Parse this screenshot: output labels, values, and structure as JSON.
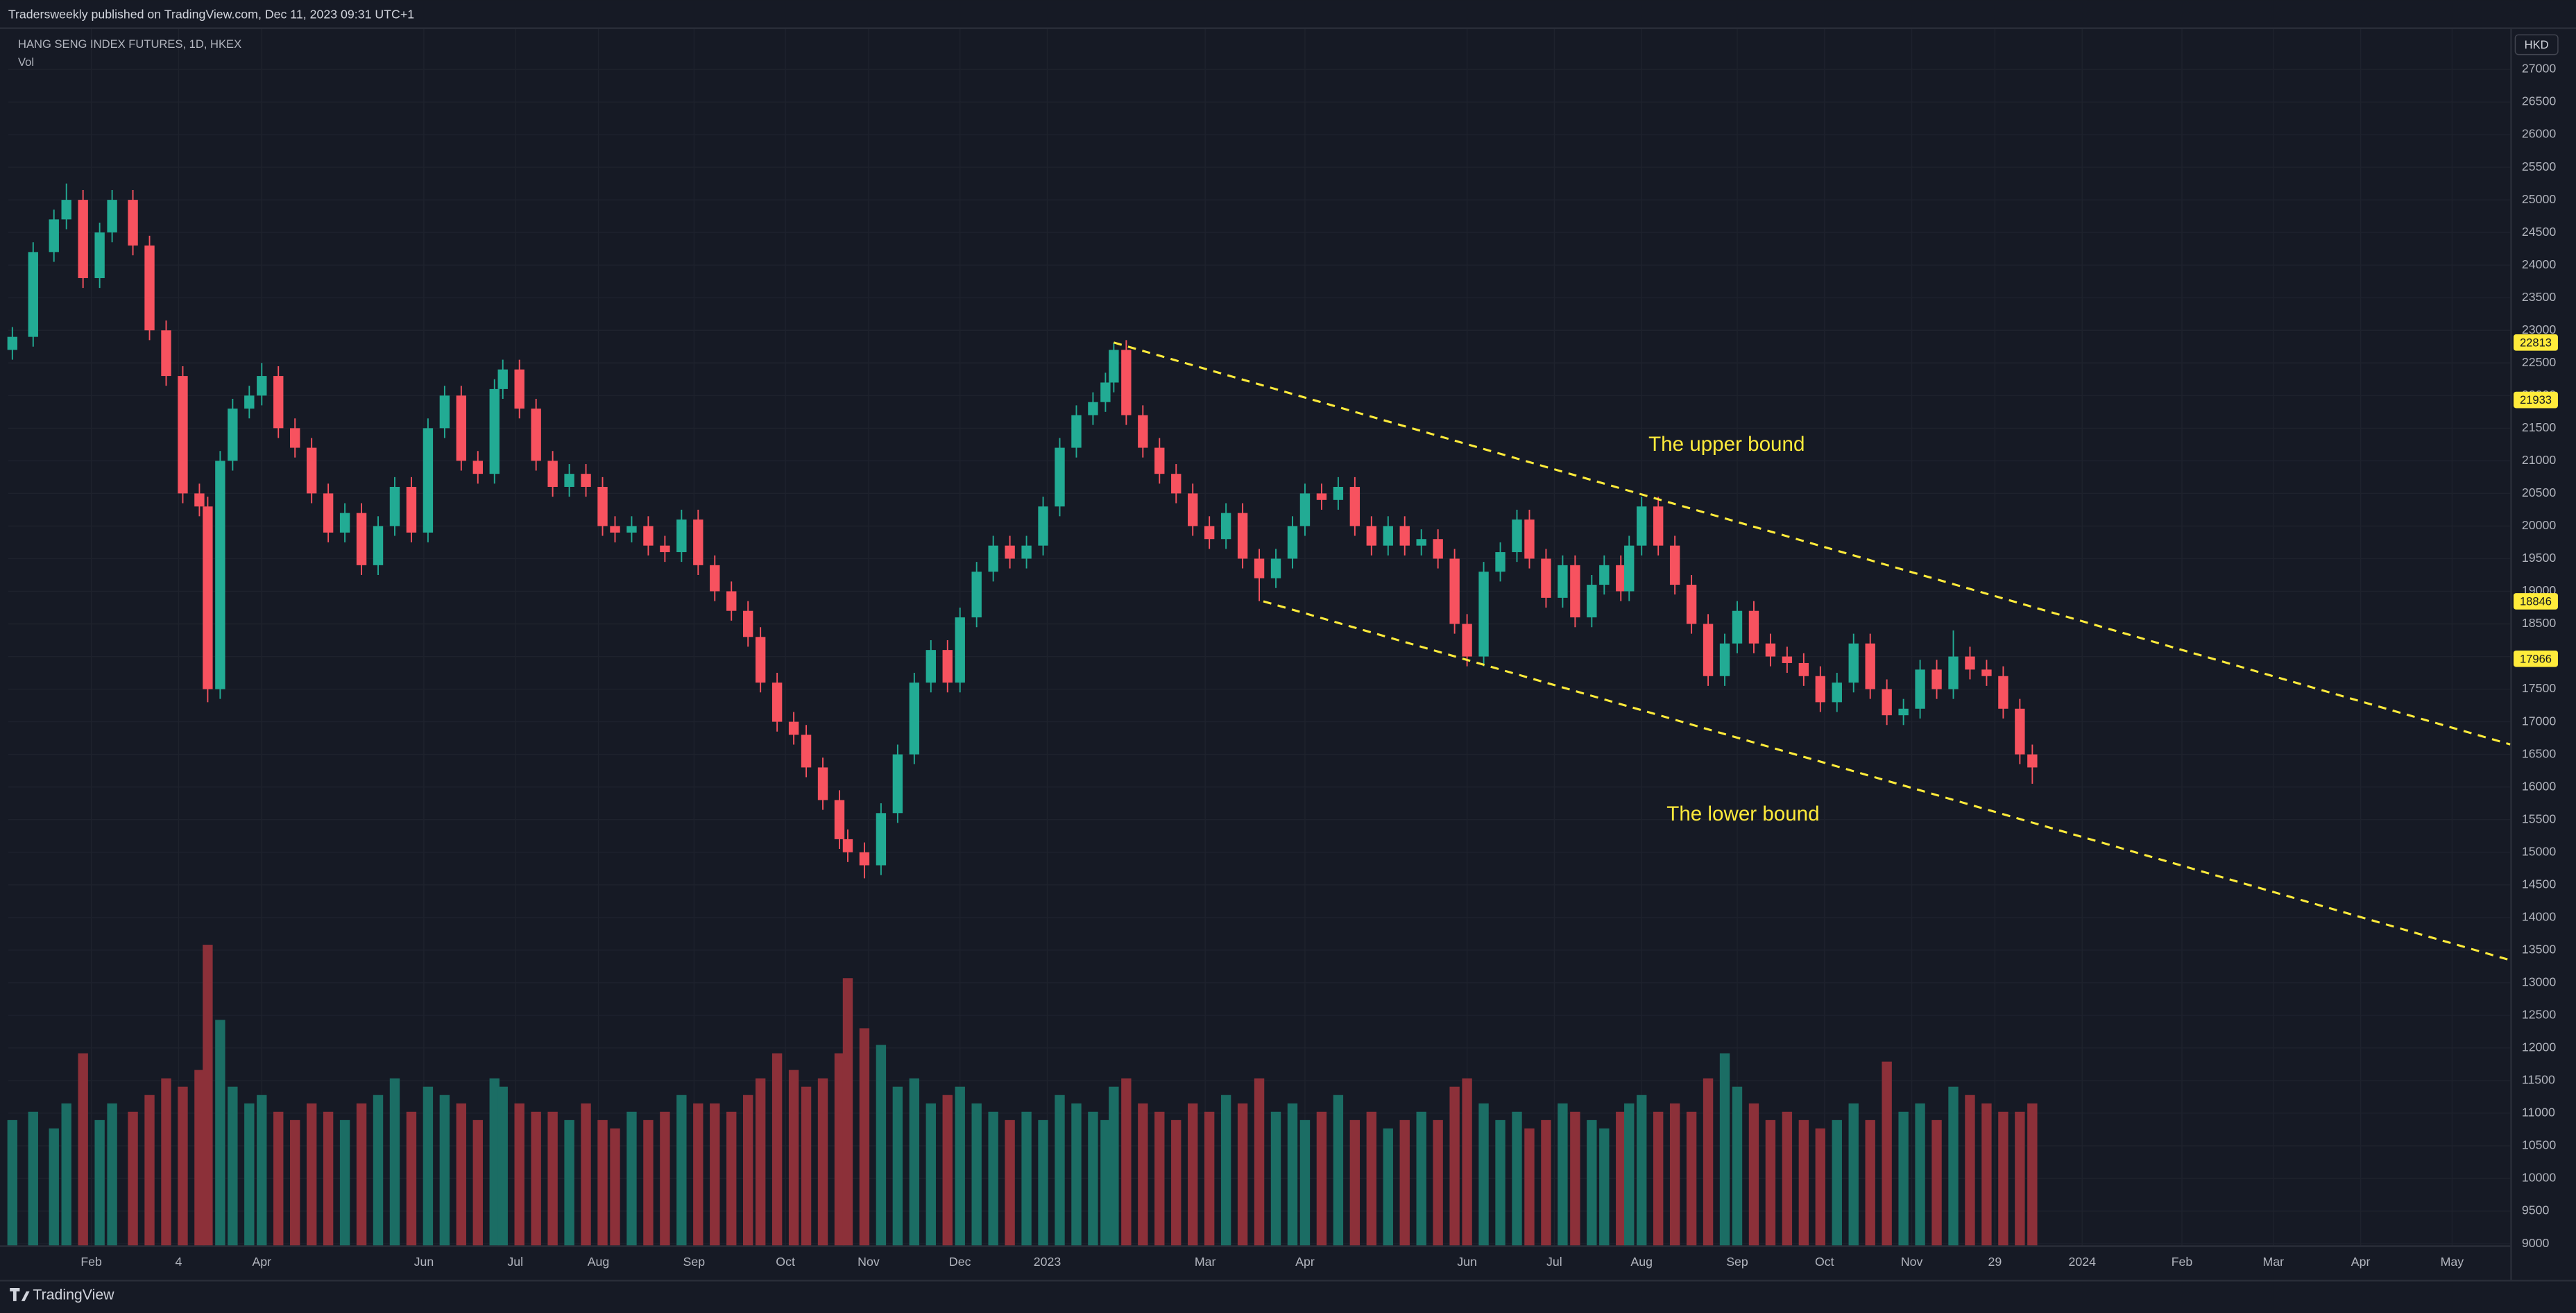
{
  "header": "Tradersweekly published on TradingView.com, Dec 11, 2023 09:31 UTC+1",
  "footer": "TradingView",
  "chart_data": {
    "type": "candlestick",
    "title": "HANG SENG INDEX FUTURES, 1D, HKEX",
    "volume_label": "Vol",
    "currency": "HKD",
    "up_color": "#22ab94",
    "down_color": "#f7525f",
    "volume_up_color": "#1b6d64",
    "volume_down_color": "#8c3039",
    "grid": true,
    "xlim": [
      -1,
      601
    ],
    "ylim": [
      8975,
      27630
    ],
    "yticks": [
      9000,
      9500,
      10000,
      10500,
      11000,
      11500,
      12000,
      12500,
      13000,
      13500,
      14000,
      14500,
      15000,
      15500,
      16000,
      16500,
      17000,
      17500,
      18000,
      18500,
      19000,
      19500,
      20000,
      20500,
      21000,
      21500,
      22000,
      22500,
      23000,
      23500,
      24000,
      24500,
      25000,
      25500,
      26000,
      26500,
      27000
    ],
    "xticks": [
      {
        "value": 19,
        "label": "Feb"
      },
      {
        "value": 40,
        "label": "4"
      },
      {
        "value": 60,
        "label": "Apr"
      },
      {
        "value": 99,
        "label": "Jun"
      },
      {
        "value": 121,
        "label": "Jul"
      },
      {
        "value": 141,
        "label": "Aug"
      },
      {
        "value": 164,
        "label": "Sep"
      },
      {
        "value": 186,
        "label": "Oct"
      },
      {
        "value": 206,
        "label": "Nov"
      },
      {
        "value": 228,
        "label": "Dec"
      },
      {
        "value": 249,
        "label": "2023"
      },
      {
        "value": 287,
        "label": "Mar"
      },
      {
        "value": 311,
        "label": "Apr"
      },
      {
        "value": 350,
        "label": "Jun"
      },
      {
        "value": 371,
        "label": "Jul"
      },
      {
        "value": 392,
        "label": "Aug"
      },
      {
        "value": 415,
        "label": "Sep"
      },
      {
        "value": 436,
        "label": "Oct"
      },
      {
        "value": 457,
        "label": "Nov"
      },
      {
        "value": 477,
        "label": "29"
      },
      {
        "value": 498,
        "label": "2024"
      },
      {
        "value": 522,
        "label": "Feb"
      },
      {
        "value": 544,
        "label": "Mar"
      },
      {
        "value": 565,
        "label": "Apr"
      },
      {
        "value": 587,
        "label": "May"
      }
    ],
    "x": [
      0,
      5,
      10,
      13,
      17,
      21,
      24,
      29,
      33,
      37,
      41,
      45,
      47,
      50,
      53,
      57,
      60,
      64,
      68,
      72,
      76,
      80,
      84,
      88,
      92,
      96,
      100,
      104,
      108,
      112,
      116,
      118,
      122,
      126,
      130,
      134,
      138,
      142,
      145,
      149,
      153,
      157,
      161,
      165,
      169,
      173,
      177,
      180,
      184,
      188,
      191,
      195,
      199,
      201,
      205,
      209,
      213,
      217,
      221,
      225,
      228,
      232,
      236,
      240,
      244,
      248,
      252,
      256,
      260,
      263,
      265,
      268,
      272,
      276,
      280,
      284,
      288,
      292,
      296,
      300,
      304,
      308,
      311,
      315,
      319,
      323,
      327,
      331,
      335,
      339,
      343,
      347,
      350,
      354,
      358,
      362,
      365,
      369,
      373,
      376,
      380,
      383,
      387,
      389,
      392,
      396,
      400,
      404,
      408,
      412,
      415,
      419,
      423,
      427,
      431,
      435,
      439,
      443,
      447,
      451,
      455,
      459,
      463,
      467,
      471,
      475,
      479,
      483,
      486
    ],
    "open": [
      22700,
      22900,
      24200,
      24700,
      25000,
      23800,
      24500,
      25000,
      24300,
      23000,
      22300,
      20500,
      20300,
      17500,
      21000,
      21800,
      22000,
      22300,
      21500,
      21200,
      20500,
      19900,
      20200,
      19400,
      20000,
      20600,
      19900,
      21500,
      22000,
      21000,
      20800,
      22100,
      22400,
      21800,
      21000,
      20600,
      20800,
      20600,
      20000,
      19900,
      20000,
      19700,
      19600,
      20100,
      19400,
      19000,
      18700,
      18300,
      17600,
      17000,
      16800,
      16300,
      15800,
      15200,
      15000,
      14800,
      15600,
      16500,
      17600,
      18100,
      17600,
      18600,
      19300,
      19700,
      19500,
      19700,
      20300,
      21200,
      21700,
      21900,
      22200,
      22700,
      21700,
      21200,
      20800,
      20500,
      20000,
      19800,
      20200,
      19500,
      19200,
      19500,
      20000,
      20500,
      20400,
      20600,
      20000,
      19700,
      20000,
      19700,
      19800,
      19500,
      18500,
      18000,
      19300,
      19600,
      20100,
      19500,
      18900,
      19400,
      18600,
      19100,
      19400,
      19000,
      19700,
      20300,
      19700,
      19100,
      18500,
      17700,
      18200,
      18700,
      18200,
      18000,
      17900,
      17700,
      17300,
      17600,
      18200,
      17500,
      17100,
      17200,
      17800,
      17500,
      18000,
      17800,
      17700,
      17200,
      16500
    ],
    "high": [
      23050,
      24350,
      24850,
      25250,
      25150,
      24650,
      25150,
      25150,
      24450,
      23150,
      22450,
      20650,
      20450,
      21150,
      21950,
      22150,
      22500,
      22450,
      21650,
      21350,
      20650,
      20350,
      20350,
      20150,
      20750,
      20750,
      21650,
      22150,
      22150,
      21150,
      22250,
      22550,
      22550,
      21950,
      21150,
      20950,
      20950,
      20750,
      20150,
      20150,
      20150,
      19850,
      20250,
      20250,
      19550,
      19150,
      18850,
      18450,
      17750,
      17150,
      16950,
      16450,
      15950,
      15350,
      15150,
      15750,
      16650,
      17750,
      18250,
      18250,
      18750,
      19450,
      19850,
      19850,
      19850,
      20450,
      21350,
      21850,
      22050,
      22350,
      22813,
      22850,
      21850,
      21350,
      20950,
      20650,
      20150,
      20350,
      20350,
      19650,
      19650,
      20150,
      20650,
      20650,
      20750,
      20750,
      20150,
      20150,
      20150,
      19950,
      19950,
      19650,
      18650,
      19450,
      19750,
      20250,
      20250,
      19650,
      19550,
      19550,
      19250,
      19550,
      19550,
      19850,
      20450,
      20450,
      19850,
      19250,
      18650,
      18350,
      18850,
      18850,
      18350,
      18150,
      18050,
      17850,
      17750,
      18350,
      18350,
      17650,
      17350,
      17950,
      17950,
      18400,
      18150,
      17950,
      17850,
      17350,
      16650
    ],
    "low": [
      22550,
      22750,
      24050,
      24550,
      23650,
      23650,
      24350,
      24150,
      22850,
      22150,
      20350,
      20150,
      17300,
      17350,
      20850,
      21650,
      21850,
      21350,
      21050,
      20350,
      19750,
      19750,
      19250,
      19250,
      19850,
      19750,
      19750,
      21350,
      20850,
      20650,
      20650,
      21950,
      21650,
      20850,
      20450,
      20450,
      20450,
      19850,
      19750,
      19750,
      19550,
      19450,
      19450,
      19250,
      18850,
      18550,
      18150,
      17450,
      16850,
      16650,
      16150,
      15650,
      15050,
      14850,
      14600,
      14650,
      15450,
      16350,
      17450,
      17450,
      17450,
      18450,
      19150,
      19350,
      19350,
      19550,
      20150,
      21050,
      21550,
      21750,
      22050,
      21550,
      21050,
      20650,
      20350,
      19850,
      19650,
      19650,
      19350,
      18850,
      19050,
      19350,
      19850,
      20250,
      20250,
      19850,
      19550,
      19550,
      19550,
      19550,
      19350,
      18350,
      17850,
      17850,
      19150,
      19450,
      19350,
      18750,
      18750,
      18450,
      18450,
      18950,
      18850,
      18850,
      19550,
      19550,
      18950,
      18350,
      17550,
      17550,
      18050,
      18050,
      17850,
      17750,
      17550,
      17150,
      17150,
      17450,
      17350,
      16950,
      16950,
      17050,
      17350,
      17350,
      17650,
      17550,
      17050,
      16350,
      16050
    ],
    "close": [
      22900,
      24200,
      24700,
      25000,
      23800,
      24500,
      25000,
      24300,
      23000,
      22300,
      20500,
      20300,
      17500,
      21000,
      21800,
      22000,
      22300,
      21500,
      21200,
      20500,
      19900,
      20200,
      19400,
      20000,
      20600,
      19900,
      21500,
      22000,
      21000,
      20800,
      22100,
      22400,
      21800,
      21000,
      20600,
      20800,
      20600,
      20000,
      19900,
      20000,
      19700,
      19600,
      20100,
      19400,
      19000,
      18700,
      18300,
      17600,
      17000,
      16800,
      16300,
      15800,
      15200,
      15000,
      14800,
      15600,
      16500,
      17600,
      18100,
      17600,
      18600,
      19300,
      19700,
      19500,
      19700,
      20300,
      21200,
      21700,
      21900,
      22200,
      22700,
      21700,
      21200,
      20800,
      20500,
      20000,
      19800,
      20200,
      19500,
      19200,
      19500,
      20000,
      20500,
      20400,
      20600,
      20000,
      19700,
      20000,
      19700,
      19800,
      19500,
      18500,
      18000,
      19300,
      19600,
      20100,
      19500,
      18900,
      19400,
      18600,
      19100,
      19400,
      19000,
      19700,
      20300,
      19700,
      19100,
      18500,
      17700,
      18200,
      18700,
      18200,
      18000,
      17900,
      17700,
      17300,
      17600,
      18200,
      17500,
      17100,
      17200,
      17800,
      17500,
      18000,
      17800,
      17700,
      17200,
      16500,
      16300
    ],
    "volume": [
      150000,
      160000,
      140000,
      170000,
      230000,
      150000,
      170000,
      160000,
      180000,
      200000,
      190000,
      210000,
      360000,
      270000,
      190000,
      170000,
      180000,
      160000,
      150000,
      170000,
      160000,
      150000,
      170000,
      180000,
      200000,
      160000,
      190000,
      180000,
      170000,
      150000,
      200000,
      190000,
      170000,
      160000,
      160000,
      150000,
      170000,
      150000,
      140000,
      160000,
      150000,
      160000,
      180000,
      170000,
      170000,
      160000,
      180000,
      200000,
      230000,
      210000,
      190000,
      200000,
      230000,
      320000,
      260000,
      240000,
      190000,
      200000,
      170000,
      180000,
      190000,
      170000,
      160000,
      150000,
      160000,
      150000,
      180000,
      170000,
      160000,
      150000,
      190000,
      200000,
      170000,
      160000,
      150000,
      170000,
      160000,
      180000,
      170000,
      200000,
      160000,
      170000,
      150000,
      160000,
      180000,
      150000,
      160000,
      140000,
      150000,
      160000,
      150000,
      190000,
      200000,
      170000,
      150000,
      160000,
      140000,
      150000,
      170000,
      160000,
      150000,
      140000,
      160000,
      170000,
      180000,
      160000,
      170000,
      160000,
      200000,
      230000,
      190000,
      170000,
      150000,
      160000,
      150000,
      140000,
      150000,
      170000,
      150000,
      220000,
      160000,
      170000,
      150000,
      190000,
      180000,
      170000,
      160000,
      160000,
      170000
    ],
    "trendline_color": "#ffeb3b",
    "trendlines": [
      {
        "points": [
          [
            265,
            22813
          ],
          [
            313,
            21933
          ]
        ]
      },
      {
        "points": [
          [
            301,
            18846
          ],
          [
            349,
            17966
          ]
        ]
      }
    ],
    "annotations": [
      "The upper bound",
      "The lower bound"
    ]
  }
}
